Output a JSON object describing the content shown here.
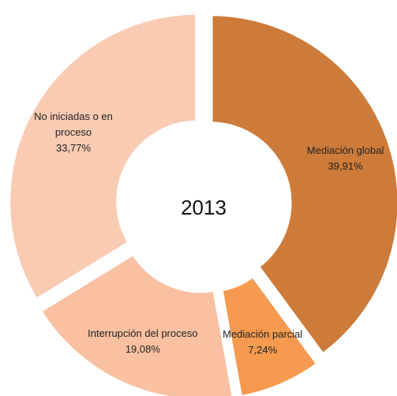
{
  "chart_data": {
    "type": "donut",
    "center_label": "2013",
    "categories": [
      "Mediación global",
      "Mediación parcial",
      "Interrupción del proceso",
      "No iniciadas o en proceso"
    ],
    "values": [
      39.91,
      7.24,
      19.08,
      33.77
    ],
    "value_labels": [
      "39,91%",
      "7,24%",
      "19,08%",
      "33,77%"
    ],
    "colors": [
      "#cd7b3a",
      "#f59a4e",
      "#f9c0a2",
      "#f9cbb3"
    ]
  }
}
